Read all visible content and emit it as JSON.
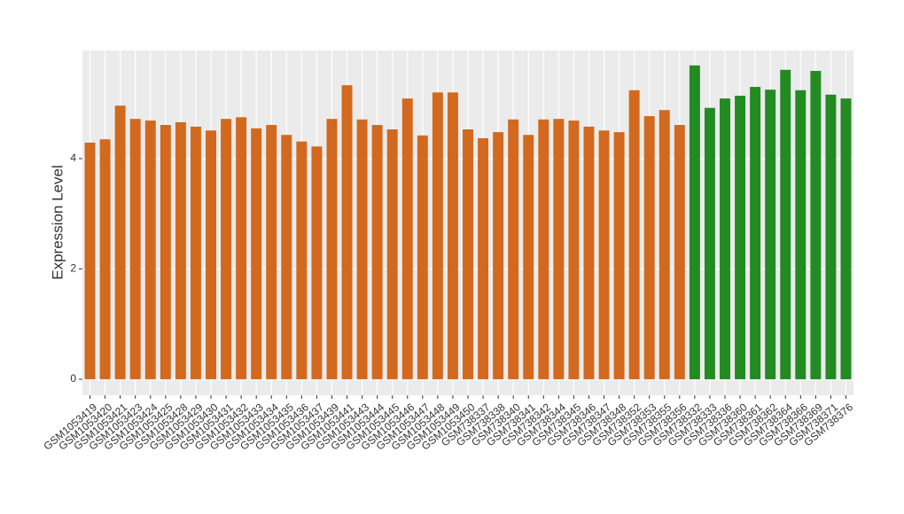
{
  "chart_data": {
    "type": "bar",
    "y_label": "Expression Level",
    "categories": [
      "GSM1053419",
      "GSM1053420",
      "GSM1053421",
      "GSM1053423",
      "GSM1053424",
      "GSM1053425",
      "GSM1053428",
      "GSM1053429",
      "GSM1053430",
      "GSM1053431",
      "GSM1053432",
      "GSM1053433",
      "GSM1053434",
      "GSM1053435",
      "GSM1053436",
      "GSM1053437",
      "GSM1053439",
      "GSM1053441",
      "GSM1053443",
      "GSM1053444",
      "GSM1053445",
      "GSM1053446",
      "GSM1053447",
      "GSM1053448",
      "GSM1053449",
      "GSM1053450",
      "GSM738337",
      "GSM738338",
      "GSM738340",
      "GSM738341",
      "GSM738342",
      "GSM738344",
      "GSM738345",
      "GSM738346",
      "GSM738347",
      "GSM738348",
      "GSM738352",
      "GSM738353",
      "GSM738355",
      "GSM738356",
      "GSM738332",
      "GSM738333",
      "GSM738336",
      "GSM738360",
      "GSM738361",
      "GSM738362",
      "GSM738364",
      "GSM738366",
      "GSM738369",
      "GSM738371",
      "GSM738376"
    ],
    "values": [
      4.29,
      4.35,
      4.96,
      4.72,
      4.69,
      4.61,
      4.66,
      4.58,
      4.51,
      4.72,
      4.75,
      4.55,
      4.61,
      4.43,
      4.31,
      4.22,
      4.72,
      5.33,
      4.71,
      4.61,
      4.53,
      5.09,
      4.42,
      5.2,
      5.2,
      4.53,
      4.37,
      4.48,
      4.71,
      4.43,
      4.71,
      4.72,
      4.69,
      4.58,
      4.51,
      4.48,
      5.24,
      4.77,
      4.88,
      4.61,
      5.69,
      4.92,
      5.09,
      5.14,
      5.3,
      5.25,
      5.61,
      5.24,
      5.59,
      5.16,
      5.09
    ],
    "colors": [
      "#d2691e",
      "#d2691e",
      "#d2691e",
      "#d2691e",
      "#d2691e",
      "#d2691e",
      "#d2691e",
      "#d2691e",
      "#d2691e",
      "#d2691e",
      "#d2691e",
      "#d2691e",
      "#d2691e",
      "#d2691e",
      "#d2691e",
      "#d2691e",
      "#d2691e",
      "#d2691e",
      "#d2691e",
      "#d2691e",
      "#d2691e",
      "#d2691e",
      "#d2691e",
      "#d2691e",
      "#d2691e",
      "#d2691e",
      "#d2691e",
      "#d2691e",
      "#d2691e",
      "#d2691e",
      "#d2691e",
      "#d2691e",
      "#d2691e",
      "#d2691e",
      "#d2691e",
      "#d2691e",
      "#d2691e",
      "#d2691e",
      "#d2691e",
      "#d2691e",
      "#228b22",
      "#228b22",
      "#228b22",
      "#228b22",
      "#228b22",
      "#228b22",
      "#228b22",
      "#228b22",
      "#228b22",
      "#228b22",
      "#228b22"
    ],
    "ylim": [
      -0.29,
      5.96
    ],
    "yticks": [
      0,
      2,
      4
    ],
    "grid": true
  }
}
